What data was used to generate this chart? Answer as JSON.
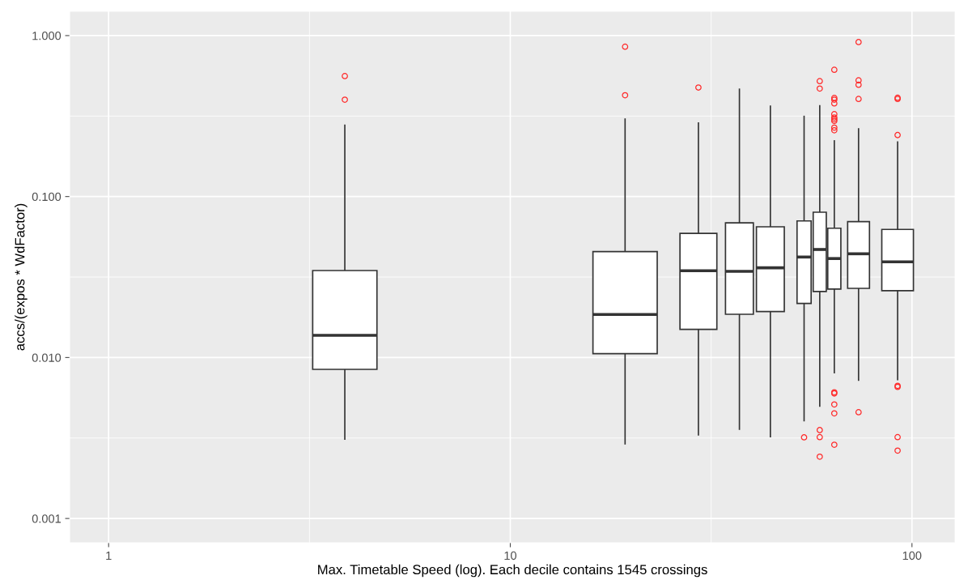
{
  "chart_data": {
    "type": "box",
    "xlabel": "Max. Timetable Speed (log). Each decile contains 1545 crossings",
    "ylabel": "accs/(expos * WdFactor)",
    "log": "xy",
    "xlim": [
      0.8,
      128
    ],
    "ylim": [
      0.000707,
      1.415
    ],
    "xticks": [
      1,
      10,
      100
    ],
    "yticks": [
      {
        "value": 0.001,
        "label": "0.001"
      },
      {
        "value": 0.01,
        "label": "0.010"
      },
      {
        "value": 0.1,
        "label": "0.100"
      },
      {
        "value": 1,
        "label": "1.000"
      }
    ],
    "grid": true,
    "x": [
      3.873,
      19.31,
      29.4,
      37.19,
      44.41,
      53.88,
      58.94,
      64.07,
      73.63,
      92.1
    ],
    "series": [
      {
        "color": "#333333",
        "boxes": [
          {
            "low": 0.00308,
            "q1": 0.00844,
            "median": 0.01374,
            "q3": 0.0347,
            "high": 0.28,
            "outliers": [
              0.56,
              0.4
            ]
          },
          {
            "low": 0.00288,
            "q1": 0.01056,
            "median": 0.0185,
            "q3": 0.0455,
            "high": 0.306,
            "outliers": [
              0.853,
              0.426
            ]
          },
          {
            "low": 0.00327,
            "q1": 0.01495,
            "median": 0.0346,
            "q3": 0.059,
            "high": 0.289,
            "outliers": [
              0.476
            ]
          },
          {
            "low": 0.00355,
            "q1": 0.01857,
            "median": 0.0343,
            "q3": 0.0686,
            "high": 0.469
          },
          {
            "low": 0.00319,
            "q1": 0.01929,
            "median": 0.0361,
            "q3": 0.0649,
            "high": 0.368
          },
          {
            "low": 0.00401,
            "q1": 0.02166,
            "median": 0.0421,
            "q3": 0.0706,
            "high": 0.318,
            "outliers": [
              0.00319
            ]
          },
          {
            "low": 0.00494,
            "q1": 0.0257,
            "median": 0.0469,
            "q3": 0.0799,
            "high": 0.37,
            "outliers": [
              0.521,
              0.469,
              0.00354,
              0.0032,
              0.00242
            ]
          },
          {
            "low": 0.00797,
            "q1": 0.0266,
            "median": 0.0412,
            "q3": 0.0636,
            "high": 0.224,
            "outliers": [
              0.613,
              0.41,
              0.4,
              0.379,
              0.325,
              0.31,
              0.302,
              0.295,
              0.268,
              0.258,
              0.00608,
              0.00598,
              0.00511,
              0.0045,
              0.00287
            ]
          },
          {
            "low": 0.00716,
            "q1": 0.0269,
            "median": 0.0441,
            "q3": 0.0698,
            "high": 0.266,
            "outliers": [
              0.911,
              0.527,
              0.495,
              0.404,
              0.00457
            ]
          },
          {
            "low": 0.00721,
            "q1": 0.026,
            "median": 0.0393,
            "q3": 0.0625,
            "high": 0.22,
            "outliers": [
              0.411,
              0.404,
              0.241,
              0.00667,
              0.00657,
              0.0032,
              0.00264
            ]
          }
        ]
      }
    ]
  }
}
